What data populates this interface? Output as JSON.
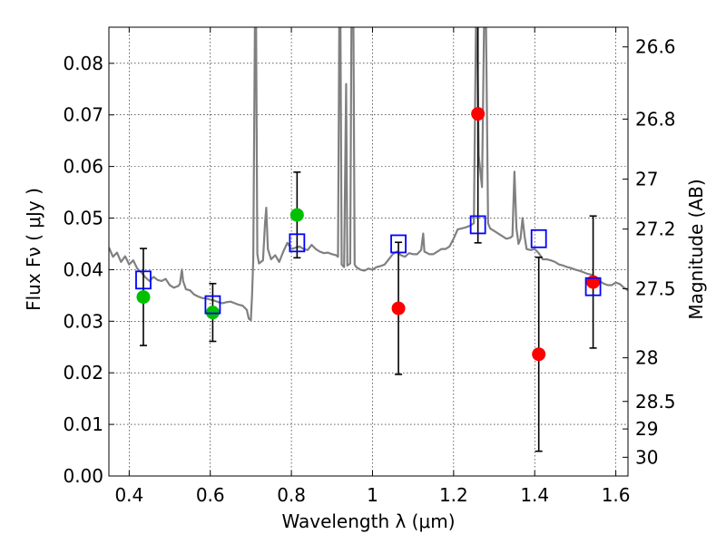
{
  "chart_data": {
    "type": "scatter",
    "title": "",
    "xlabel": "Wavelength  λ (μm)",
    "ylabel": "Flux  Fν  ( μJy )",
    "ylabel_right": "Magnitude (AB)",
    "xlim": [
      0.35,
      1.63
    ],
    "ylim": [
      0.0,
      0.087
    ],
    "grid": true,
    "x_ticks": [
      {
        "value": 0.4,
        "label": "0.4"
      },
      {
        "value": 0.6,
        "label": "0.6"
      },
      {
        "value": 0.8,
        "label": "0.8"
      },
      {
        "value": 1.0,
        "label": "1"
      },
      {
        "value": 1.2,
        "label": "1.2"
      },
      {
        "value": 1.4,
        "label": "1.4"
      },
      {
        "value": 1.6,
        "label": "1.6"
      }
    ],
    "y_ticks": [
      {
        "value": 0.0,
        "label": "0.00"
      },
      {
        "value": 0.01,
        "label": "0.01"
      },
      {
        "value": 0.02,
        "label": "0.02"
      },
      {
        "value": 0.03,
        "label": "0.03"
      },
      {
        "value": 0.04,
        "label": "0.04"
      },
      {
        "value": 0.05,
        "label": "0.05"
      },
      {
        "value": 0.06,
        "label": "0.06"
      },
      {
        "value": 0.07,
        "label": "0.07"
      },
      {
        "value": 0.08,
        "label": "0.08"
      }
    ],
    "y2_ticks": [
      {
        "mag": 26.6,
        "label": "26.6"
      },
      {
        "mag": 26.8,
        "label": "26.8"
      },
      {
        "mag": 27.0,
        "label": "27"
      },
      {
        "mag": 27.2,
        "label": "27.2"
      },
      {
        "mag": 27.5,
        "label": "27.5"
      },
      {
        "mag": 28.0,
        "label": "28"
      },
      {
        "mag": 28.5,
        "label": "28.5"
      },
      {
        "mag": 29.0,
        "label": "29"
      },
      {
        "mag": 30.0,
        "label": "30"
      }
    ],
    "colors": {
      "model": "#808080",
      "green": "#00c000",
      "red": "#ff0000",
      "blue": "#0000ff",
      "errorbar": "#000000"
    },
    "series": [
      {
        "kind": "line",
        "color": "#808080",
        "points": [
          [
            0.35,
            0.0443
          ],
          [
            0.36,
            0.0425
          ],
          [
            0.37,
            0.0433
          ],
          [
            0.38,
            0.0415
          ],
          [
            0.39,
            0.0426
          ],
          [
            0.4,
            0.041
          ],
          [
            0.41,
            0.0418
          ],
          [
            0.42,
            0.0402
          ],
          [
            0.43,
            0.0395
          ],
          [
            0.44,
            0.0385
          ],
          [
            0.45,
            0.0378
          ],
          [
            0.46,
            0.0386
          ],
          [
            0.47,
            0.038
          ],
          [
            0.48,
            0.0378
          ],
          [
            0.49,
            0.0382
          ],
          [
            0.5,
            0.037
          ],
          [
            0.51,
            0.0365
          ],
          [
            0.52,
            0.0368
          ],
          [
            0.525,
            0.0372
          ],
          [
            0.53,
            0.04
          ],
          [
            0.533,
            0.0378
          ],
          [
            0.54,
            0.0362
          ],
          [
            0.55,
            0.036
          ],
          [
            0.56,
            0.0352
          ],
          [
            0.57,
            0.0348
          ],
          [
            0.58,
            0.0345
          ],
          [
            0.59,
            0.0344
          ],
          [
            0.6,
            0.0342
          ],
          [
            0.61,
            0.034
          ],
          [
            0.62,
            0.0337
          ],
          [
            0.63,
            0.0335
          ],
          [
            0.64,
            0.0337
          ],
          [
            0.65,
            0.0338
          ],
          [
            0.66,
            0.0335
          ],
          [
            0.67,
            0.0332
          ],
          [
            0.68,
            0.033
          ],
          [
            0.69,
            0.0322
          ],
          [
            0.695,
            0.0305
          ],
          [
            0.7,
            0.0302
          ],
          [
            0.703,
            0.035
          ],
          [
            0.706,
            0.042
          ],
          [
            0.71,
            0.087
          ],
          [
            0.713,
            0.087
          ],
          [
            0.716,
            0.043
          ],
          [
            0.72,
            0.0412
          ],
          [
            0.73,
            0.0418
          ],
          [
            0.735,
            0.049
          ],
          [
            0.738,
            0.052
          ],
          [
            0.742,
            0.044
          ],
          [
            0.75,
            0.042
          ],
          [
            0.76,
            0.0428
          ],
          [
            0.77,
            0.0415
          ],
          [
            0.78,
            0.0435
          ],
          [
            0.79,
            0.0452
          ],
          [
            0.8,
            0.044
          ],
          [
            0.82,
            0.0445
          ],
          [
            0.83,
            0.044
          ],
          [
            0.84,
            0.0438
          ],
          [
            0.85,
            0.0448
          ],
          [
            0.86,
            0.044
          ],
          [
            0.87,
            0.0435
          ],
          [
            0.88,
            0.0432
          ],
          [
            0.89,
            0.0433
          ],
          [
            0.9,
            0.043
          ],
          [
            0.91,
            0.0428
          ],
          [
            0.915,
            0.0425
          ],
          [
            0.918,
            0.087
          ],
          [
            0.921,
            0.087
          ],
          [
            0.924,
            0.041
          ],
          [
            0.93,
            0.0405
          ],
          [
            0.935,
            0.076
          ],
          [
            0.938,
            0.0408
          ],
          [
            0.945,
            0.0412
          ],
          [
            0.948,
            0.087
          ],
          [
            0.953,
            0.087
          ],
          [
            0.956,
            0.041
          ],
          [
            0.96,
            0.0405
          ],
          [
            0.97,
            0.04
          ],
          [
            0.98,
            0.0398
          ],
          [
            0.99,
            0.0402
          ],
          [
            1.0,
            0.04
          ],
          [
            1.01,
            0.0405
          ],
          [
            1.02,
            0.0407
          ],
          [
            1.03,
            0.041
          ],
          [
            1.04,
            0.042
          ],
          [
            1.05,
            0.043
          ],
          [
            1.06,
            0.0435
          ],
          [
            1.07,
            0.0428
          ],
          [
            1.08,
            0.0425
          ],
          [
            1.09,
            0.0432
          ],
          [
            1.1,
            0.043
          ],
          [
            1.11,
            0.043
          ],
          [
            1.12,
            0.0438
          ],
          [
            1.125,
            0.047
          ],
          [
            1.128,
            0.0435
          ],
          [
            1.14,
            0.043
          ],
          [
            1.15,
            0.043
          ],
          [
            1.16,
            0.0435
          ],
          [
            1.17,
            0.044
          ],
          [
            1.18,
            0.044
          ],
          [
            1.19,
            0.0445
          ],
          [
            1.2,
            0.046
          ],
          [
            1.21,
            0.0478
          ],
          [
            1.22,
            0.048
          ],
          [
            1.23,
            0.0482
          ],
          [
            1.24,
            0.0485
          ],
          [
            1.25,
            0.049
          ],
          [
            1.255,
            0.087
          ],
          [
            1.258,
            0.087
          ],
          [
            1.262,
            0.062
          ],
          [
            1.27,
            0.056
          ],
          [
            1.275,
            0.087
          ],
          [
            1.28,
            0.087
          ],
          [
            1.285,
            0.049
          ],
          [
            1.29,
            0.048
          ],
          [
            1.3,
            0.0475
          ],
          [
            1.31,
            0.047
          ],
          [
            1.32,
            0.0465
          ],
          [
            1.33,
            0.046
          ],
          [
            1.34,
            0.0462
          ],
          [
            1.345,
            0.0465
          ],
          [
            1.35,
            0.059
          ],
          [
            1.355,
            0.048
          ],
          [
            1.36,
            0.045
          ],
          [
            1.365,
            0.046
          ],
          [
            1.37,
            0.05
          ],
          [
            1.375,
            0.0465
          ],
          [
            1.38,
            0.044
          ],
          [
            1.39,
            0.0438
          ],
          [
            1.4,
            0.044
          ],
          [
            1.41,
            0.0432
          ],
          [
            1.42,
            0.042
          ],
          [
            1.43,
            0.042
          ],
          [
            1.44,
            0.0418
          ],
          [
            1.45,
            0.0415
          ],
          [
            1.46,
            0.041
          ],
          [
            1.47,
            0.0408
          ],
          [
            1.48,
            0.0405
          ],
          [
            1.49,
            0.0403
          ],
          [
            1.5,
            0.04
          ],
          [
            1.51,
            0.0398
          ],
          [
            1.52,
            0.0395
          ],
          [
            1.53,
            0.0392
          ],
          [
            1.54,
            0.039
          ],
          [
            1.55,
            0.0385
          ],
          [
            1.56,
            0.0378
          ],
          [
            1.57,
            0.0373
          ],
          [
            1.58,
            0.037
          ],
          [
            1.59,
            0.037
          ],
          [
            1.6,
            0.0375
          ],
          [
            1.61,
            0.0372
          ],
          [
            1.62,
            0.0365
          ],
          [
            1.63,
            0.036
          ]
        ]
      },
      {
        "kind": "points",
        "marker": "circle",
        "color": "#00c000",
        "points": [
          {
            "x": 0.435,
            "y": 0.0347,
            "err": 0.0094
          },
          {
            "x": 0.606,
            "y": 0.0317,
            "err": 0.0056
          },
          {
            "x": 0.814,
            "y": 0.0506,
            "err": 0.0083
          }
        ]
      },
      {
        "kind": "points",
        "marker": "circle",
        "color": "#ff0000",
        "points": [
          {
            "x": 1.064,
            "y": 0.0325,
            "err": 0.0128
          },
          {
            "x": 1.26,
            "y": 0.0702,
            "err": 0.025
          },
          {
            "x": 1.41,
            "y": 0.0236,
            "err": 0.0188
          },
          {
            "x": 1.544,
            "y": 0.0376,
            "err": 0.0128
          }
        ]
      },
      {
        "kind": "points",
        "marker": "open-square",
        "color": "#0000ff",
        "points": [
          {
            "x": 0.435,
            "y": 0.038
          },
          {
            "x": 0.606,
            "y": 0.0332
          },
          {
            "x": 0.814,
            "y": 0.0452
          },
          {
            "x": 1.064,
            "y": 0.045
          },
          {
            "x": 1.26,
            "y": 0.0487
          },
          {
            "x": 1.41,
            "y": 0.046
          },
          {
            "x": 1.544,
            "y": 0.0367
          }
        ]
      }
    ]
  }
}
